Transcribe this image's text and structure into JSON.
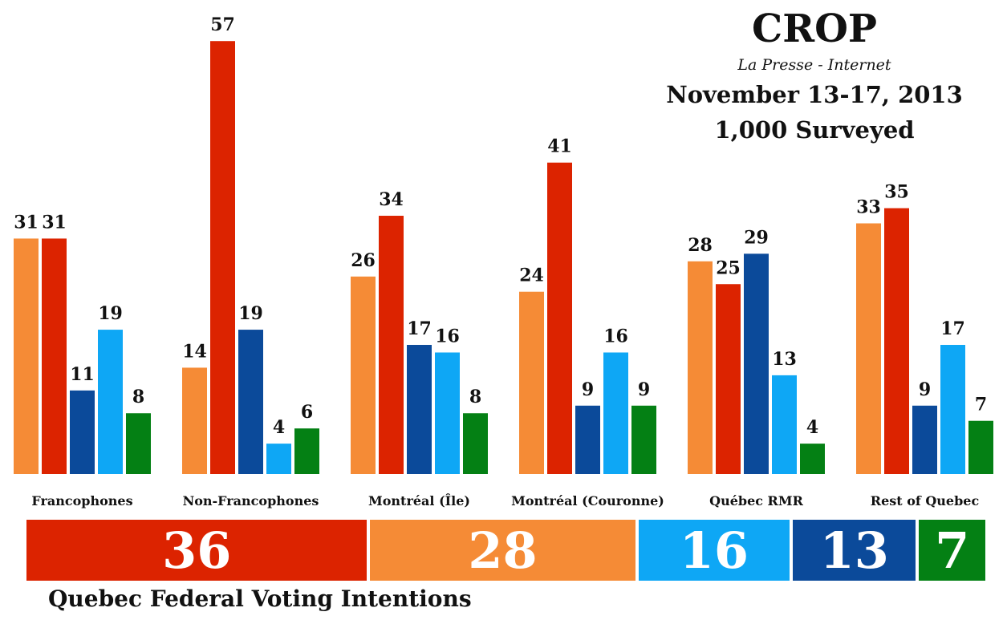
{
  "header": {
    "title": "CROP",
    "subtitle": "La Presse - Internet",
    "date": "November 13-17, 2013",
    "sample": "1,000 Surveyed"
  },
  "chart_data": {
    "type": "bar",
    "title": "CROP",
    "categories": [
      "Francophones",
      "Non-Francophones",
      "Montréal (Île)",
      "Montréal (Couronne)",
      "Québec RMR",
      "Rest of Quebec"
    ],
    "series": [
      {
        "color": "#f58b36",
        "values": [
          31,
          14,
          26,
          24,
          28,
          33
        ]
      },
      {
        "color": "#dc2300",
        "values": [
          31,
          57,
          34,
          41,
          25,
          35
        ]
      },
      {
        "color": "#0b4a9a",
        "values": [
          11,
          19,
          17,
          9,
          29,
          9
        ]
      },
      {
        "color": "#0ea7f5",
        "values": [
          19,
          4,
          16,
          16,
          13,
          17
        ]
      },
      {
        "color": "#048014",
        "values": [
          8,
          6,
          8,
          9,
          4,
          7
        ]
      }
    ],
    "ylim": [
      0,
      57
    ],
    "grid": false,
    "legend": "none",
    "summary_bar": {
      "title": "Quebec Federal Voting Intentions",
      "segments": [
        {
          "value": 36,
          "color": "#dc2300"
        },
        {
          "value": 28,
          "color": "#f58b36"
        },
        {
          "value": 16,
          "color": "#0ea7f5"
        },
        {
          "value": 13,
          "color": "#0b4a9a"
        },
        {
          "value": 7,
          "color": "#048014"
        }
      ]
    }
  }
}
